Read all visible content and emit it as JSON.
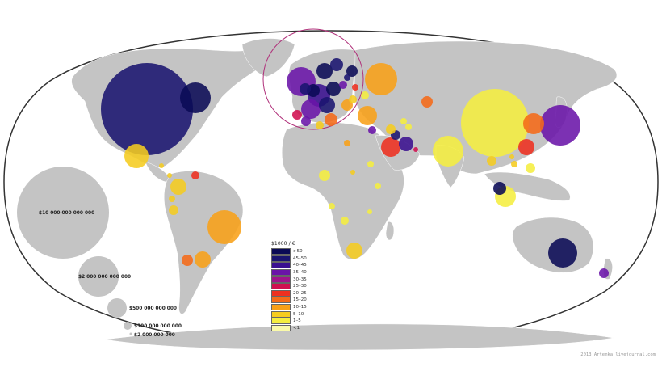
{
  "legend": {
    "title": "$1000 / €",
    "items": [
      {
        "label": ">50",
        "color": "#0a0a55"
      },
      {
        "label": "45–50",
        "color": "#1a1470"
      },
      {
        "label": "40–45",
        "color": "#3a1090"
      },
      {
        "label": "35–40",
        "color": "#6a14a8"
      },
      {
        "label": "30–35",
        "color": "#a0148c"
      },
      {
        "label": "25–30",
        "color": "#d01050"
      },
      {
        "label": "20–25",
        "color": "#ee3020"
      },
      {
        "label": "15–20",
        "color": "#f56a18"
      },
      {
        "label": "10–15",
        "color": "#f8a018"
      },
      {
        "label": "5–10",
        "color": "#f5cc20"
      },
      {
        "label": "1–5",
        "color": "#f5ee40"
      },
      {
        "label": "<1",
        "color": "#fafaaa"
      }
    ]
  },
  "size_scale": [
    {
      "label": "$10 000 000 000 000"
    },
    {
      "label": "$2 000 000 000 000"
    },
    {
      "label": "$500 000 000 000"
    },
    {
      "label": "$100 000 000 000"
    },
    {
      "label": "$2 000 000 000"
    }
  ],
  "credit": "2013 Artemka.livejournal.com",
  "colors": {
    "land": "#c4c4c4",
    "ocean": "#ffffff",
    "outline": "#333333",
    "highlight_ring": "#b0307a"
  }
}
